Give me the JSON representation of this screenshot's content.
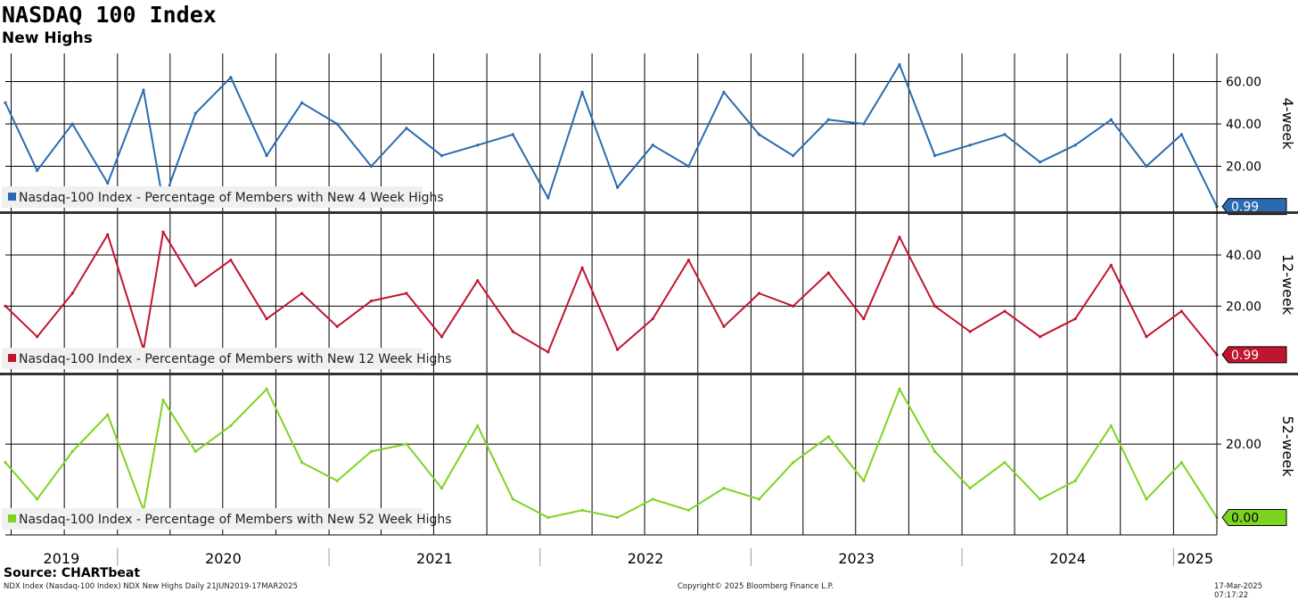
{
  "header": {
    "title": "NASDAQ 100 Index",
    "subtitle": "New Highs"
  },
  "footer": {
    "source": "Source: CHARTbeat",
    "left": "NDX Index (Nasdaq-100 Index) NDX New Highs  Daily 21JUN2019-17MAR2025",
    "center": "Copyright© 2025 Bloomberg Finance L.P.",
    "right": "17-Mar-2025 07:17:22"
  },
  "colors": {
    "four_week": "#2a6bb0",
    "twelve_week": "#c0152f",
    "fifty_two_week": "#7ed321",
    "grid": "#000000",
    "legend_bg": "#f0f0f0"
  },
  "chart_data": [
    {
      "type": "line",
      "panel": "4-week",
      "axis_label": "4-week",
      "ylim": [
        0,
        72
      ],
      "yticks": [
        "20.00",
        "40.00",
        "60.00"
      ],
      "last_value_label": "0.99",
      "series": [
        {
          "name": "Nasdaq-100 Index - Percentage of Members with New 4 Week Highs",
          "color": "#2a6bb0",
          "x": [
            "2019-06-21",
            "2019-08",
            "2019-10",
            "2019-12",
            "2020-02",
            "2020-03-20",
            "2020-05",
            "2020-07",
            "2020-09",
            "2020-11",
            "2021-01",
            "2021-03",
            "2021-05",
            "2021-07",
            "2021-09",
            "2021-11",
            "2022-01",
            "2022-03",
            "2022-05",
            "2022-07",
            "2022-09",
            "2022-11",
            "2023-01",
            "2023-03",
            "2023-05",
            "2023-07",
            "2023-09",
            "2023-11",
            "2024-01",
            "2024-03",
            "2024-05",
            "2024-07",
            "2024-09",
            "2024-11",
            "2025-01",
            "2025-03-17"
          ],
          "values": [
            50,
            18,
            40,
            12,
            56,
            3,
            45,
            62,
            25,
            50,
            40,
            20,
            38,
            25,
            30,
            35,
            5,
            55,
            10,
            30,
            20,
            55,
            35,
            25,
            42,
            40,
            68,
            25,
            30,
            35,
            22,
            30,
            42,
            20,
            35,
            0.99
          ]
        }
      ]
    },
    {
      "type": "line",
      "panel": "12-week",
      "axis_label": "12-week",
      "ylim": [
        -5,
        55
      ],
      "yticks": [
        "20.00",
        "40.00"
      ],
      "last_value_label": "0.99",
      "series": [
        {
          "name": "Nasdaq-100 Index - Percentage of Members with New 12 Week Highs",
          "color": "#c0152f",
          "x": [
            "2019-06-21",
            "2019-08",
            "2019-10",
            "2019-12",
            "2020-02",
            "2020-03-20",
            "2020-05",
            "2020-07",
            "2020-09",
            "2020-11",
            "2021-01",
            "2021-03",
            "2021-05",
            "2021-07",
            "2021-09",
            "2021-11",
            "2022-01",
            "2022-03",
            "2022-05",
            "2022-07",
            "2022-09",
            "2022-11",
            "2023-01",
            "2023-03",
            "2023-05",
            "2023-07",
            "2023-09",
            "2023-11",
            "2024-01",
            "2024-03",
            "2024-05",
            "2024-07",
            "2024-09",
            "2024-11",
            "2025-01",
            "2025-03-17"
          ],
          "values": [
            20,
            8,
            25,
            48,
            3,
            49,
            28,
            38,
            15,
            25,
            12,
            22,
            25,
            8,
            30,
            10,
            2,
            35,
            3,
            15,
            38,
            12,
            25,
            20,
            33,
            15,
            47,
            20,
            10,
            18,
            8,
            15,
            36,
            8,
            18,
            0.99
          ]
        }
      ]
    },
    {
      "type": "line",
      "panel": "52-week",
      "axis_label": "52-week",
      "ylim": [
        -4,
        38
      ],
      "yticks": [
        "20.00"
      ],
      "last_value_label": "0.00",
      "series": [
        {
          "name": "Nasdaq-100 Index - Percentage of Members with New 52 Week Highs",
          "color": "#7ed321",
          "x": [
            "2019-06-21",
            "2019-08",
            "2019-10",
            "2019-12",
            "2020-02",
            "2020-03-20",
            "2020-05",
            "2020-07",
            "2020-09",
            "2020-11",
            "2021-01",
            "2021-03",
            "2021-05",
            "2021-07",
            "2021-09",
            "2021-11",
            "2022-01",
            "2022-03",
            "2022-05",
            "2022-07",
            "2022-09",
            "2022-11",
            "2023-01",
            "2023-03",
            "2023-05",
            "2023-07",
            "2023-09",
            "2023-11",
            "2024-01",
            "2024-03",
            "2024-05",
            "2024-07",
            "2024-09",
            "2024-11",
            "2025-01",
            "2025-03-17"
          ],
          "values": [
            15,
            5,
            18,
            28,
            2,
            32,
            18,
            25,
            35,
            15,
            10,
            18,
            20,
            8,
            25,
            5,
            0,
            2,
            0,
            5,
            2,
            8,
            5,
            15,
            22,
            10,
            35,
            18,
            8,
            15,
            5,
            10,
            25,
            5,
            15,
            0
          ]
        }
      ]
    },
    {
      "type": "axis",
      "x_tick_labels": [
        "2019",
        "2020",
        "2021",
        "2022",
        "2023",
        "2024",
        "2025"
      ]
    }
  ]
}
